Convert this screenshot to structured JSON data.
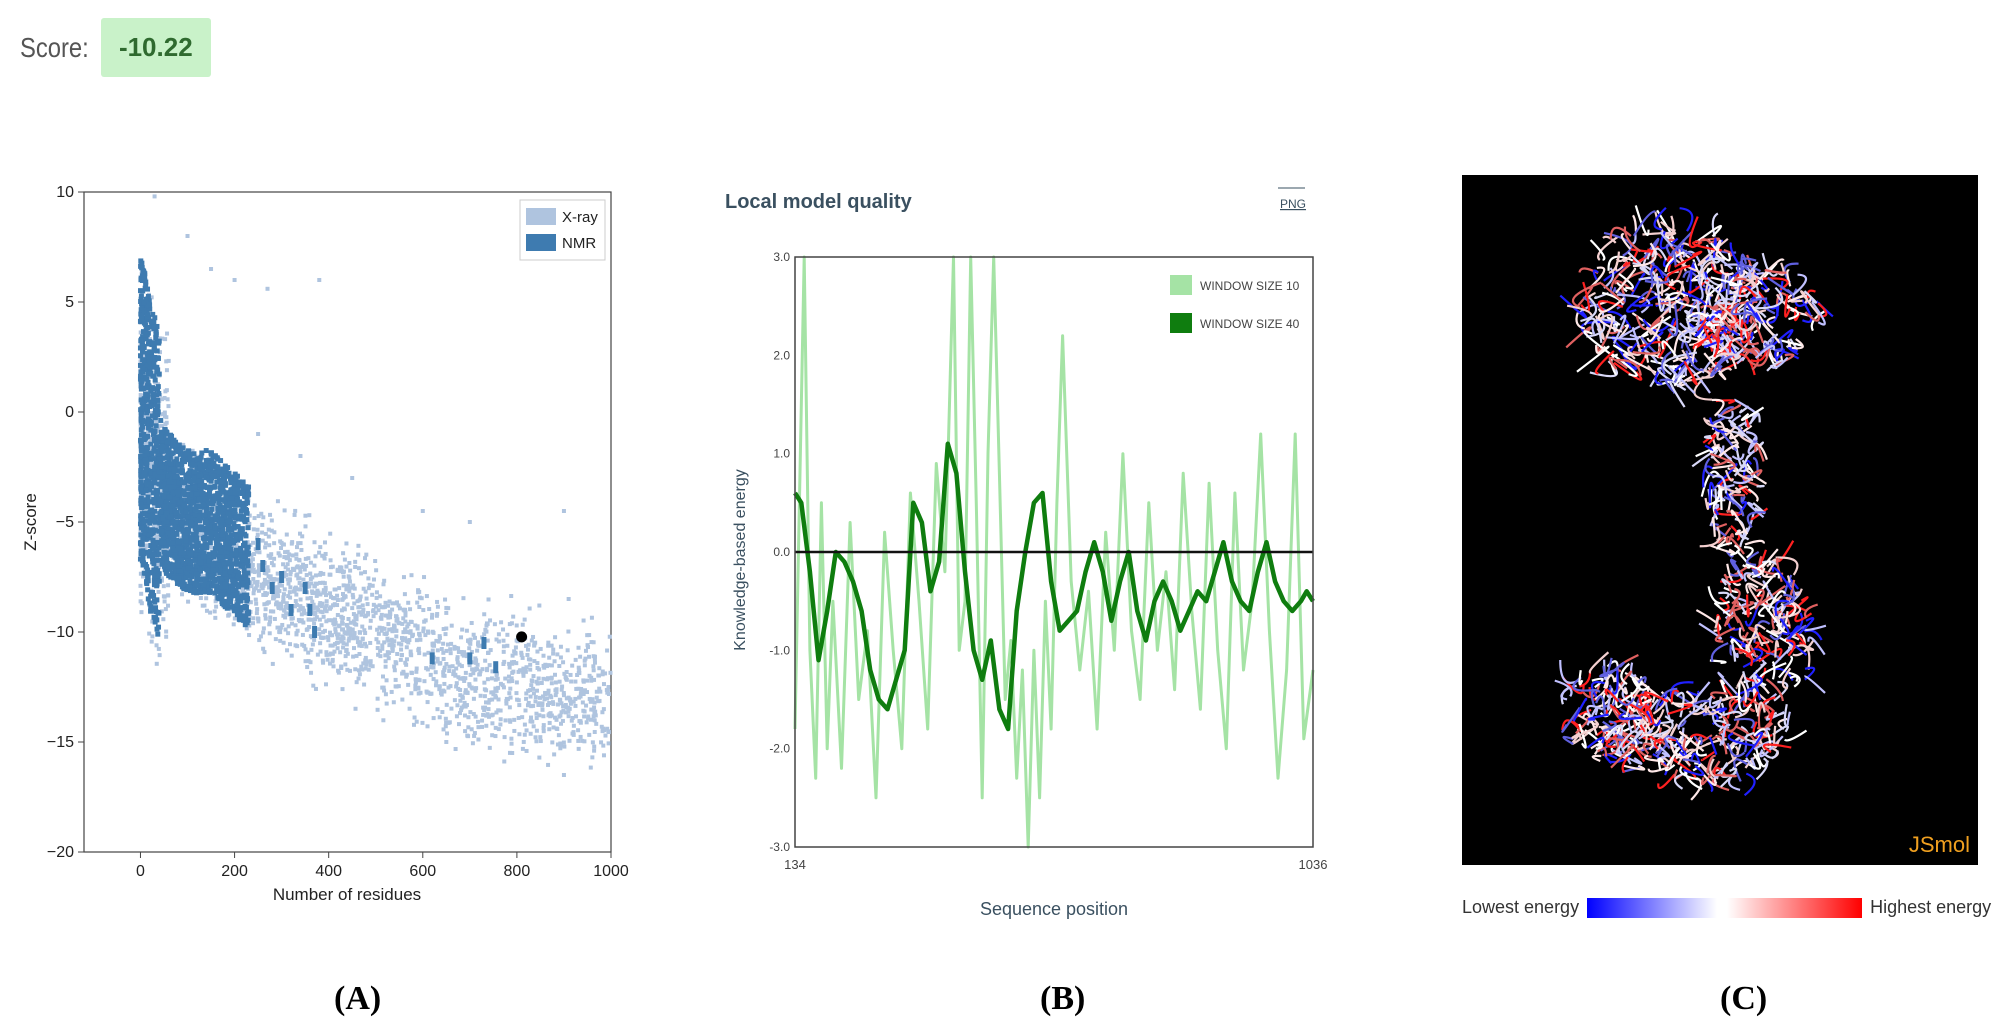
{
  "score": {
    "label": "Score:",
    "value": "-10.22"
  },
  "panels": {
    "a": "(A)",
    "b": "(B)",
    "c": "(C)"
  },
  "chart_data": [
    {
      "type": "scatter",
      "xlabel": "Number of residues",
      "ylabel": "Z-score",
      "xlim": [
        -120,
        1000
      ],
      "ylim": [
        -20,
        10
      ],
      "xticks": [
        0,
        200,
        400,
        600,
        800,
        1000
      ],
      "yticks": [
        10,
        5,
        0,
        -5,
        -10,
        -15,
        -20
      ],
      "legend": {
        "position": "top-right",
        "entries": [
          "X-ray",
          "NMR"
        ]
      },
      "colors": {
        "xray": "#afc4df",
        "nmr": "#3e7bb0",
        "highlight": "#000000"
      },
      "series": [
        {
          "name": "X-ray",
          "points": [
            [
              10,
              -2
            ],
            [
              50,
              -4
            ],
            [
              100,
              -5
            ],
            [
              150,
              -6
            ],
            [
              200,
              -7
            ],
            [
              300,
              -8
            ],
            [
              400,
              -9
            ],
            [
              500,
              -10
            ],
            [
              600,
              -11
            ],
            [
              700,
              -12
            ],
            [
              800,
              -12
            ],
            [
              900,
              -13
            ],
            [
              1000,
              -13
            ]
          ]
        },
        {
          "name": "NMR",
          "points": [
            [
              5,
              0
            ],
            [
              20,
              -2
            ],
            [
              50,
              -4
            ],
            [
              100,
              -5
            ],
            [
              150,
              -5
            ],
            [
              200,
              -6
            ],
            [
              250,
              -7
            ],
            [
              300,
              -7
            ],
            [
              350,
              -8
            ],
            [
              650,
              -11
            ],
            [
              700,
              -11
            ]
          ]
        }
      ],
      "highlight": {
        "x": 810,
        "y": -10.22
      }
    },
    {
      "type": "line",
      "title": "Local model quality",
      "png_label": "PNG",
      "xlabel": "Sequence position",
      "ylabel": "Knowledge-based energy",
      "xlim": [
        134,
        1036
      ],
      "ylim": [
        -3.0,
        3.0
      ],
      "xticks": [
        "134",
        "1036"
      ],
      "yticks": [
        "3.0",
        "2.0",
        "1.0",
        "0.0",
        "-1.0",
        "-2.0",
        "-3.0"
      ],
      "legend": {
        "position": "top-right",
        "entries": [
          "WINDOW SIZE 10",
          "WINDOW SIZE 40"
        ]
      },
      "colors": {
        "ws10": "#a5e3a5",
        "ws40": "#0f7d0f"
      },
      "series": [
        {
          "name": "WINDOW SIZE 10",
          "x": [
            134,
            150,
            160,
            170,
            180,
            190,
            200,
            215,
            230,
            245,
            260,
            275,
            290,
            305,
            320,
            335,
            350,
            365,
            380,
            395,
            410,
            420,
            430,
            440,
            450,
            460,
            470,
            480,
            490,
            500,
            510,
            520,
            530,
            540,
            550,
            560,
            570,
            580,
            590,
            600,
            615,
            630,
            645,
            660,
            675,
            690,
            705,
            720,
            735,
            750,
            765,
            780,
            795,
            810,
            825,
            840,
            855,
            870,
            885,
            900,
            915,
            930,
            945,
            960,
            975,
            990,
            1005,
            1020,
            1036
          ],
          "y": [
            -1.8,
            3.0,
            -1.0,
            -2.3,
            0.5,
            -2.0,
            -0.5,
            -2.2,
            0.3,
            -1.5,
            -0.8,
            -2.5,
            0.2,
            -1.0,
            -2.0,
            0.6,
            -0.5,
            -1.8,
            0.9,
            -0.2,
            3.0,
            -1.0,
            -0.5,
            3.0,
            0.4,
            -2.5,
            1.0,
            3.0,
            0.8,
            -1.5,
            -0.9,
            -2.3,
            -1.2,
            -3.0,
            -1.0,
            -2.5,
            -0.5,
            -1.8,
            0.5,
            2.2,
            -0.3,
            -1.2,
            -0.4,
            -1.8,
            0.2,
            -1.0,
            1.0,
            -0.8,
            -1.5,
            0.5,
            -1.0,
            -0.2,
            -1.4,
            0.8,
            -0.6,
            -1.6,
            0.7,
            -1.0,
            -2.0,
            0.6,
            -1.2,
            -0.5,
            1.2,
            -0.8,
            -2.3,
            -1.2,
            1.2,
            -1.9,
            -1.2
          ]
        },
        {
          "name": "WINDOW SIZE 40",
          "x": [
            134,
            145,
            160,
            175,
            190,
            205,
            220,
            235,
            250,
            265,
            280,
            295,
            310,
            325,
            340,
            355,
            370,
            385,
            400,
            415,
            430,
            445,
            460,
            475,
            490,
            505,
            520,
            535,
            550,
            565,
            580,
            595,
            610,
            625,
            640,
            655,
            670,
            685,
            700,
            715,
            730,
            745,
            760,
            775,
            790,
            805,
            820,
            835,
            850,
            865,
            880,
            895,
            910,
            925,
            940,
            955,
            970,
            985,
            1000,
            1015,
            1025,
            1036
          ],
          "y": [
            0.6,
            0.5,
            -0.2,
            -1.1,
            -0.6,
            0.0,
            -0.1,
            -0.3,
            -0.6,
            -1.2,
            -1.5,
            -1.6,
            -1.3,
            -1.0,
            0.5,
            0.3,
            -0.4,
            -0.1,
            1.1,
            0.8,
            -0.2,
            -1.0,
            -1.3,
            -0.9,
            -1.6,
            -1.8,
            -0.6,
            0.0,
            0.5,
            0.6,
            -0.3,
            -0.8,
            -0.7,
            -0.6,
            -0.2,
            0.1,
            -0.2,
            -0.7,
            -0.3,
            0.0,
            -0.6,
            -0.9,
            -0.5,
            -0.3,
            -0.5,
            -0.8,
            -0.6,
            -0.4,
            -0.5,
            -0.2,
            0.1,
            -0.3,
            -0.5,
            -0.6,
            -0.2,
            0.1,
            -0.3,
            -0.5,
            -0.6,
            -0.5,
            -0.4,
            -0.5
          ]
        }
      ]
    },
    {
      "type": "other",
      "viewer_label": "JSmol",
      "legend": {
        "low": "Lowest energy",
        "high": "Highest energy"
      },
      "colors": {
        "background": "#000000",
        "low": "#0000ff",
        "high": "#ff0000",
        "brand": "#f0a020"
      }
    }
  ]
}
